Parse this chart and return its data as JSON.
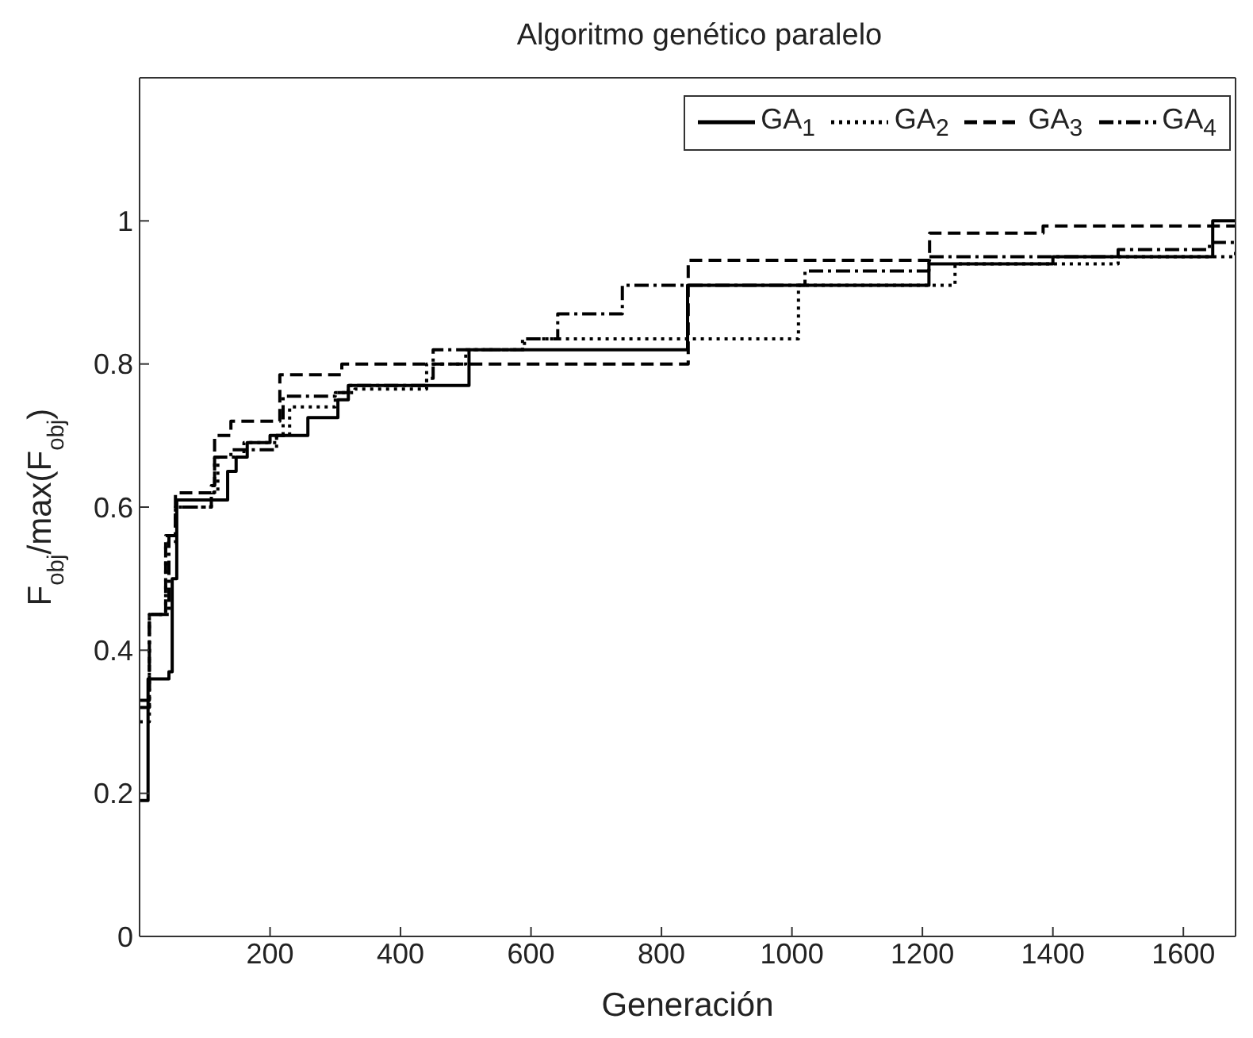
{
  "chart_data": {
    "type": "step",
    "title": "Algoritmo genético paralelo",
    "xlabel": "Generación",
    "ylabel": "F$_{obj}$/max(F$_{obj}$)",
    "xlim": [
      0,
      1680
    ],
    "xticks": [
      200,
      400,
      600,
      800,
      1000,
      1200,
      1400,
      1600
    ],
    "ylim": [
      0,
      1.2
    ],
    "yticks": [
      0,
      0.2,
      0.4,
      0.6,
      0.8,
      1
    ],
    "legend": "top right",
    "marker": "none",
    "series": [
      {
        "name": "GA$_{1}$",
        "color": "#000000",
        "line_style": "solid",
        "x": [
          0,
          13,
          45,
          50,
          57,
          135,
          148,
          165,
          200,
          258,
          304,
          320,
          505,
          840,
          1210,
          1400,
          1645,
          1680
        ],
        "values": [
          0.19,
          0.36,
          0.37,
          0.5,
          0.61,
          0.65,
          0.67,
          0.69,
          0.7,
          0.725,
          0.75,
          0.77,
          0.82,
          0.91,
          0.94,
          0.95,
          1.0,
          1.0
        ]
      },
      {
        "name": "GA$_{2}$",
        "color": "#000000",
        "line_style": "dotted",
        "x": [
          0,
          15,
          40,
          55,
          110,
          120,
          160,
          210,
          230,
          300,
          330,
          440,
          500,
          590,
          1010,
          1250,
          1500,
          1680
        ],
        "values": [
          0.3,
          0.45,
          0.55,
          0.6,
          0.62,
          0.67,
          0.69,
          0.7,
          0.74,
          0.76,
          0.765,
          0.8,
          0.82,
          0.835,
          0.91,
          0.94,
          0.95,
          0.96
        ]
      },
      {
        "name": "GA$_{3}$",
        "color": "#000000",
        "line_style": "dashed",
        "x": [
          0,
          15,
          40,
          55,
          110,
          115,
          140,
          215,
          310,
          841,
          1211,
          1385,
          1680
        ],
        "values": [
          0.33,
          0.45,
          0.56,
          0.62,
          0.63,
          0.7,
          0.72,
          0.785,
          0.8,
          0.945,
          0.983,
          0.993,
          0.993
        ]
      },
      {
        "name": "GA$_{4}$",
        "color": "#000000",
        "line_style": "dashdot",
        "x": [
          0,
          15,
          45,
          55,
          110,
          115,
          140,
          210,
          220,
          300,
          320,
          440,
          450,
          587,
          641,
          740,
          1020,
          1210,
          1500,
          1640,
          1680
        ],
        "values": [
          0.32,
          0.45,
          0.56,
          0.6,
          0.61,
          0.67,
          0.68,
          0.7,
          0.755,
          0.76,
          0.77,
          0.78,
          0.82,
          0.835,
          0.87,
          0.91,
          0.93,
          0.95,
          0.96,
          0.97,
          0.97
        ]
      }
    ]
  }
}
